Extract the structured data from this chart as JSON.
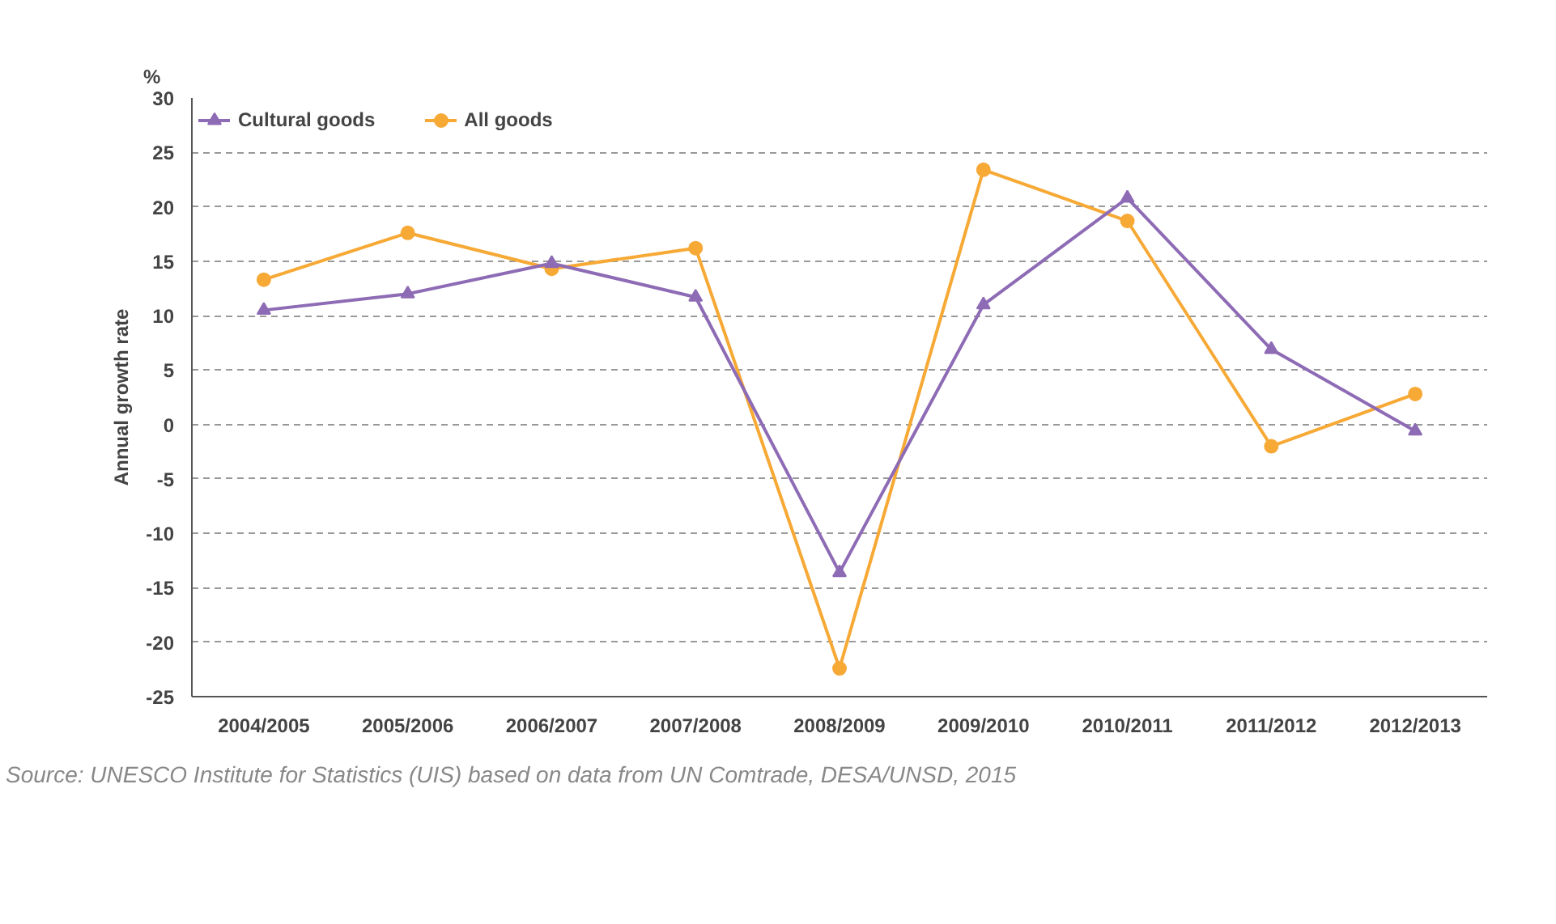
{
  "chart_data": {
    "type": "line",
    "ylabel": "Annual growth rate",
    "annotations": [
      "%",
      "Source: UNESCO Institute for Statistics (UIS) based on data from UN Comtrade, DESA/UNSD, 2015"
    ],
    "categories": [
      "2004/2005",
      "2005/2006",
      "2006/2007",
      "2007/2008",
      "2008/2009",
      "2009/2010",
      "2010/2011",
      "2011/2012",
      "2012/2013"
    ],
    "series": [
      {
        "name": "Cultural goods",
        "color": "#8e6bb5",
        "marker": "triangle",
        "values": [
          10.5,
          12.0,
          14.8,
          11.7,
          -13.6,
          11.0,
          20.8,
          6.9,
          -0.6
        ]
      },
      {
        "name": "All goods",
        "color": "#f7a936",
        "marker": "circle",
        "values": [
          13.3,
          17.6,
          14.3,
          16.2,
          -22.4,
          23.4,
          18.7,
          -2.0,
          2.8
        ]
      }
    ],
    "ylim": [
      -25,
      30
    ],
    "yticks": [
      -25,
      -20,
      -15,
      -10,
      -5,
      0,
      5,
      10,
      15,
      20,
      25,
      30
    ],
    "grid": "y",
    "legend": "top left",
    "line_style": "solid"
  }
}
